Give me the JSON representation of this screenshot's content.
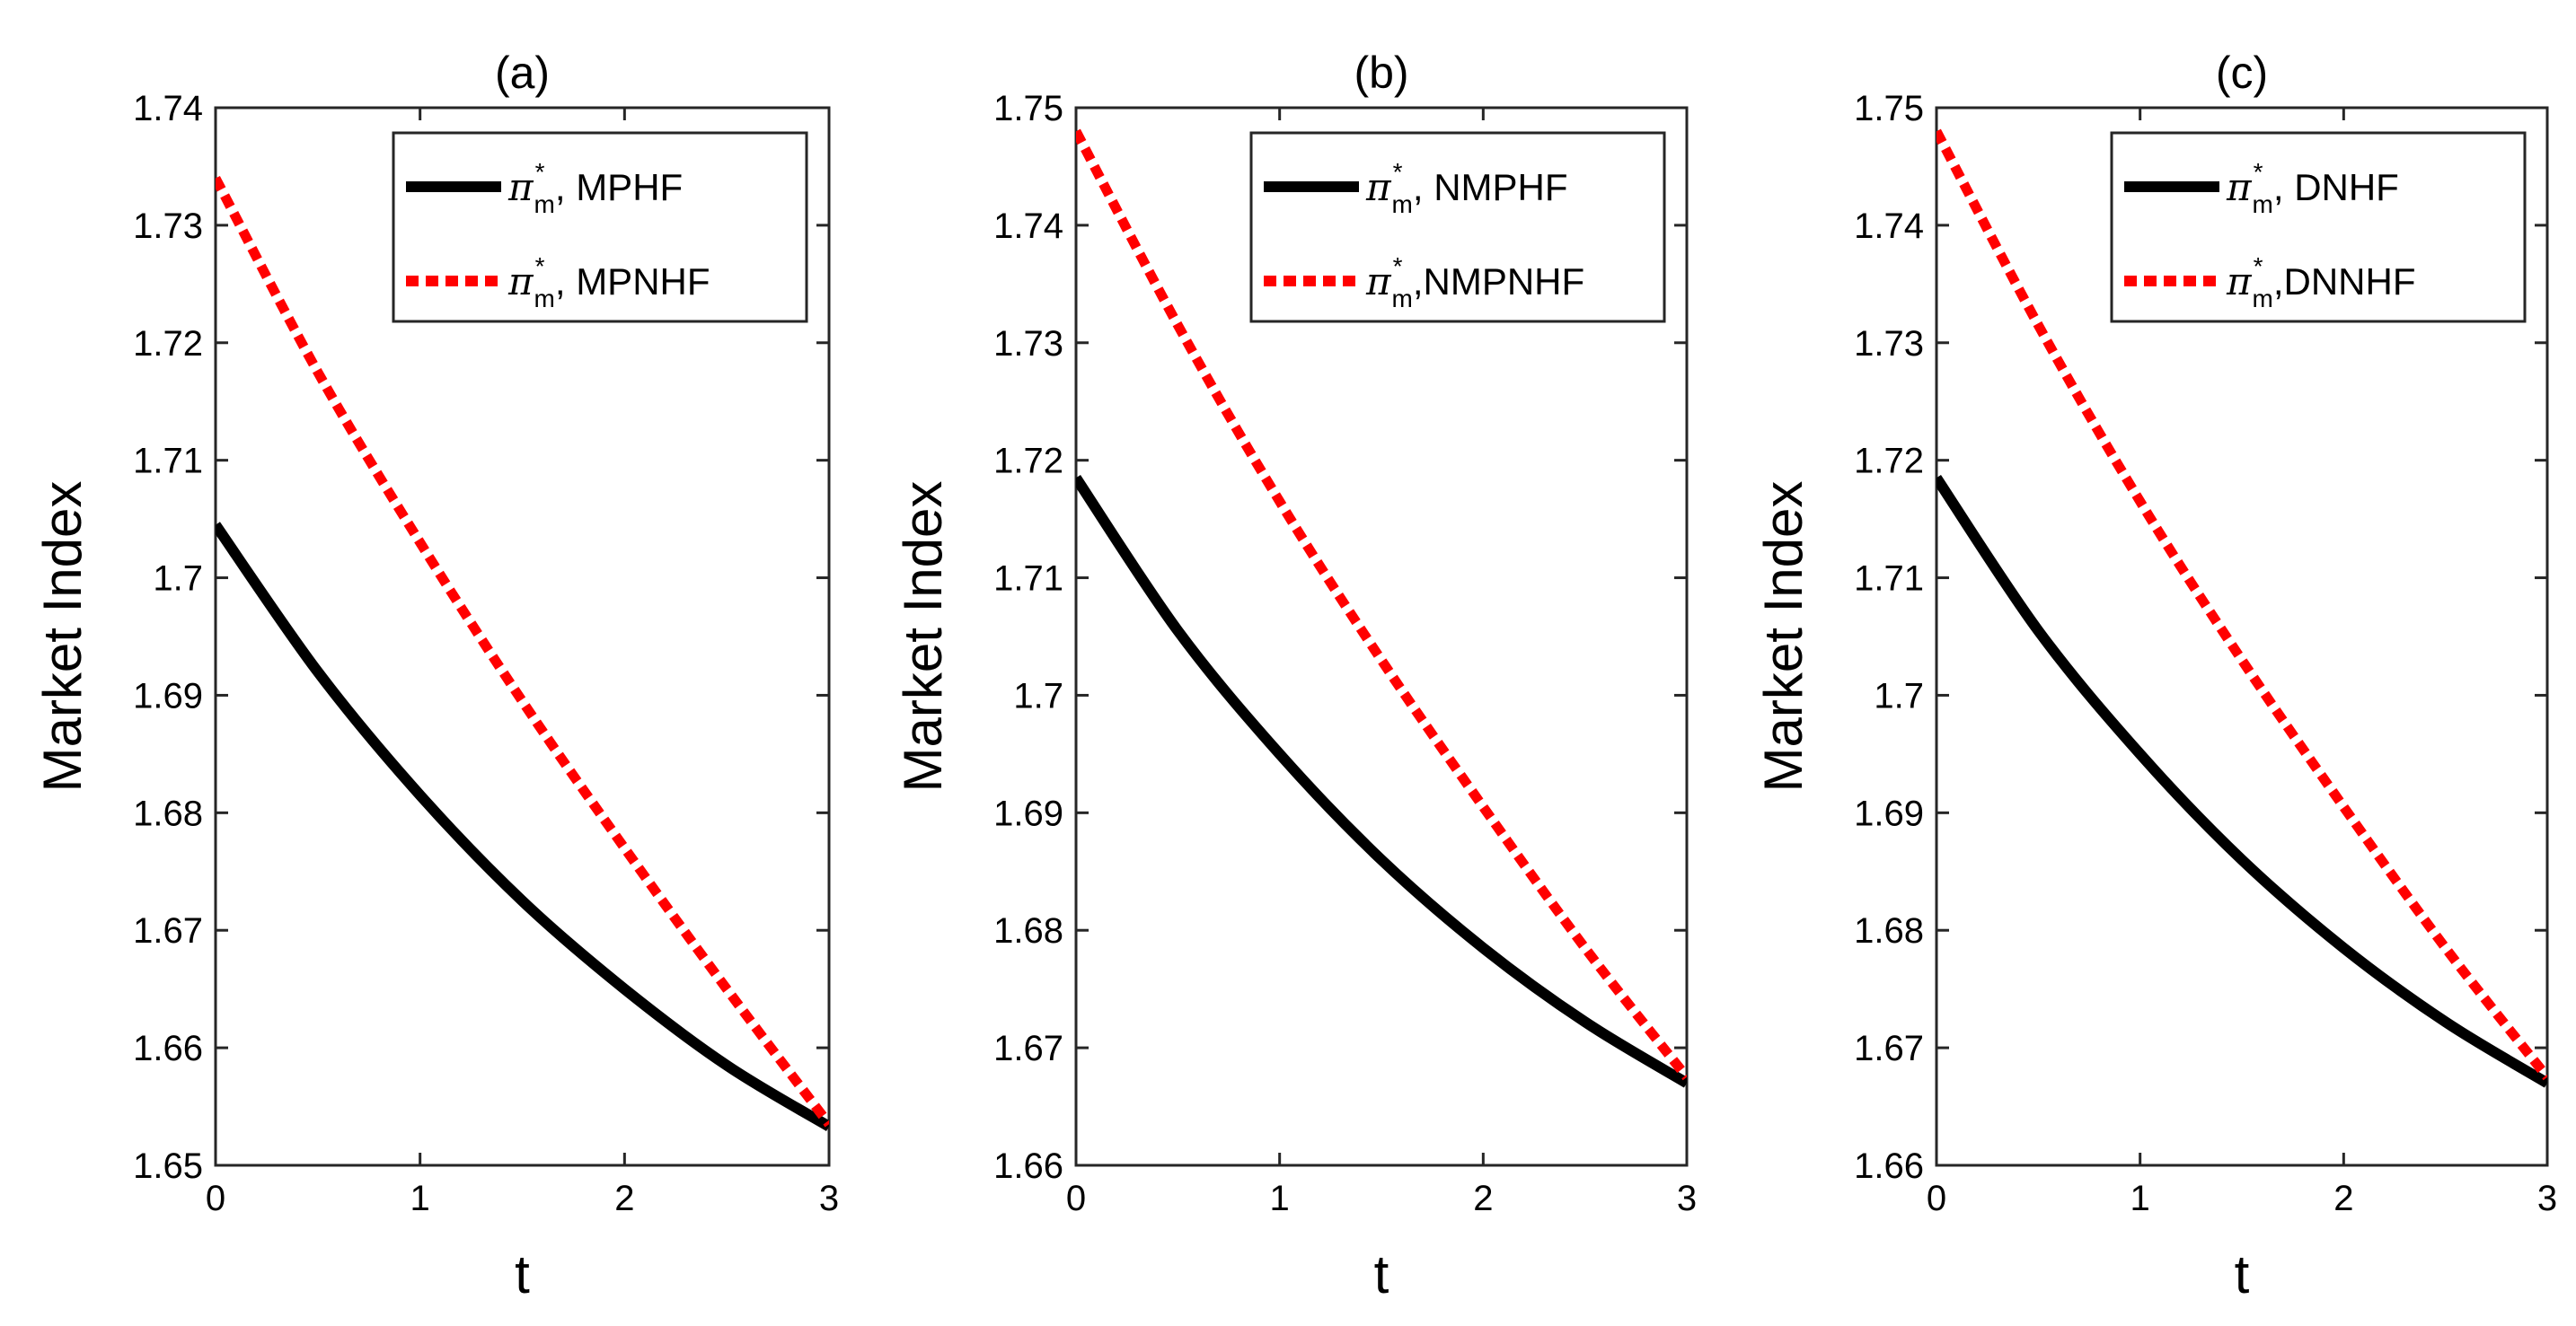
{
  "chart_data": [
    {
      "type": "line",
      "title": "(a)",
      "xlabel": "t",
      "ylabel": "Market Index",
      "xlim": [
        0,
        3
      ],
      "ylim": [
        1.65,
        1.74
      ],
      "xticks": [
        0,
        1,
        2,
        3
      ],
      "xtick_labels": [
        "0",
        "1",
        "2",
        "3"
      ],
      "yticks": [
        1.65,
        1.66,
        1.67,
        1.68,
        1.69,
        1.7,
        1.71,
        1.72,
        1.73,
        1.74
      ],
      "ytick_labels": [
        "1.65",
        "1.66",
        "1.67",
        "1.68",
        "1.69",
        "1.7",
        "1.71",
        "1.72",
        "1.73",
        "1.74"
      ],
      "grid": false,
      "legend_position": "top-right",
      "x": [
        0,
        0.5,
        1,
        1.5,
        2,
        2.5,
        3
      ],
      "series": [
        {
          "name": "MPHF",
          "symbol": "π",
          "superscript": "*",
          "subscript": "m",
          "sep": ", ",
          "color": "#000000",
          "style": "solid",
          "values": [
            1.7045,
            1.692,
            1.6815,
            1.6725,
            1.665,
            1.6585,
            1.6533
          ]
        },
        {
          "name": "MPNHF",
          "symbol": "π",
          "superscript": "*",
          "subscript": "m",
          "sep": ", ",
          "color": "#ff0000",
          "style": "dotted",
          "values": [
            1.734,
            1.7175,
            1.703,
            1.6895,
            1.677,
            1.665,
            1.6535
          ]
        }
      ]
    },
    {
      "type": "line",
      "title": "(b)",
      "xlabel": "t",
      "ylabel": "Market Index",
      "xlim": [
        0,
        3
      ],
      "ylim": [
        1.66,
        1.75
      ],
      "xticks": [
        0,
        1,
        2,
        3
      ],
      "xtick_labels": [
        "0",
        "1",
        "2",
        "3"
      ],
      "yticks": [
        1.66,
        1.67,
        1.68,
        1.69,
        1.7,
        1.71,
        1.72,
        1.73,
        1.74,
        1.75
      ],
      "ytick_labels": [
        "1.66",
        "1.67",
        "1.68",
        "1.69",
        "1.7",
        "1.71",
        "1.72",
        "1.73",
        "1.74",
        "1.75"
      ],
      "grid": false,
      "legend_position": "top-right",
      "x": [
        0,
        0.5,
        1,
        1.5,
        2,
        2.5,
        3
      ],
      "series": [
        {
          "name": "NMPHF",
          "symbol": "π",
          "superscript": "*",
          "subscript": "m",
          "sep": ", ",
          "color": "#000000",
          "style": "solid",
          "values": [
            1.7185,
            1.7055,
            1.695,
            1.686,
            1.6785,
            1.6722,
            1.667
          ]
        },
        {
          "name": "NMPNHF",
          "symbol": "π",
          "superscript": "*",
          "subscript": "m",
          "sep": ",",
          "color": "#ff0000",
          "style": "dotted",
          "values": [
            1.748,
            1.7315,
            1.7165,
            1.703,
            1.6905,
            1.6785,
            1.6675
          ]
        }
      ]
    },
    {
      "type": "line",
      "title": "(c)",
      "xlabel": "t",
      "ylabel": "Market Index",
      "xlim": [
        0,
        3
      ],
      "ylim": [
        1.66,
        1.75
      ],
      "xticks": [
        0,
        1,
        2,
        3
      ],
      "xtick_labels": [
        "0",
        "1",
        "2",
        "3"
      ],
      "yticks": [
        1.66,
        1.67,
        1.68,
        1.69,
        1.7,
        1.71,
        1.72,
        1.73,
        1.74,
        1.75
      ],
      "ytick_labels": [
        "1.66",
        "1.67",
        "1.68",
        "1.69",
        "1.7",
        "1.71",
        "1.72",
        "1.73",
        "1.74",
        "1.75"
      ],
      "grid": false,
      "legend_position": "top-right",
      "x": [
        0,
        0.5,
        1,
        1.5,
        2,
        2.5,
        3
      ],
      "series": [
        {
          "name": "DNHF",
          "symbol": "π",
          "superscript": "*",
          "subscript": "m",
          "sep": ", ",
          "color": "#000000",
          "style": "solid",
          "values": [
            1.7185,
            1.7055,
            1.695,
            1.686,
            1.6785,
            1.6722,
            1.667
          ]
        },
        {
          "name": "DNNHF",
          "symbol": "π",
          "superscript": "*",
          "subscript": "m",
          "sep": ",",
          "color": "#ff0000",
          "style": "dotted",
          "values": [
            1.748,
            1.7315,
            1.7165,
            1.703,
            1.6905,
            1.6785,
            1.6675
          ]
        }
      ]
    }
  ]
}
